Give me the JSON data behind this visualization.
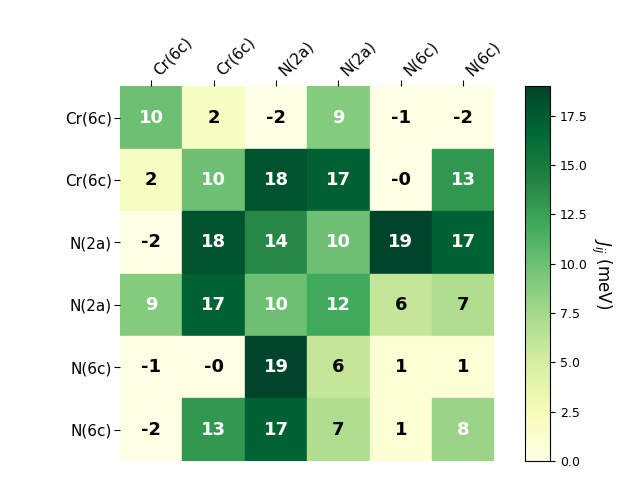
{
  "labels": [
    "Cr(6c)",
    "Cr(6c)",
    "N(2a)",
    "N(2a)",
    "N(6c)",
    "N(6c)"
  ],
  "matrix": [
    [
      10,
      2,
      -2,
      9,
      -1,
      -2
    ],
    [
      2,
      10,
      18,
      17,
      0,
      13
    ],
    [
      -2,
      18,
      14,
      10,
      19,
      17
    ],
    [
      9,
      17,
      10,
      12,
      6,
      7
    ],
    [
      -1,
      0,
      19,
      6,
      1,
      1
    ],
    [
      -2,
      13,
      17,
      7,
      1,
      8
    ]
  ],
  "display_values": [
    [
      "10",
      "2",
      "-2",
      "9",
      "-1",
      "-2"
    ],
    [
      "2",
      "10",
      "18",
      "17",
      "-0",
      "13"
    ],
    [
      "-2",
      "18",
      "14",
      "10",
      "19",
      "17"
    ],
    [
      "9",
      "17",
      "10",
      "12",
      "6",
      "7"
    ],
    [
      "-1",
      "-0",
      "19",
      "6",
      "1",
      "1"
    ],
    [
      "-2",
      "13",
      "17",
      "7",
      "1",
      "8"
    ]
  ],
  "vmin": 0.0,
  "vmax": 19.0,
  "cbar_label": "$J_{ij}$ (meV)",
  "cmap": "YlGn",
  "cbar_ticks": [
    0.0,
    2.5,
    5.0,
    7.5,
    10.0,
    12.5,
    15.0,
    17.5
  ],
  "font_size_annot": 13,
  "font_size_tick": 11,
  "font_size_cbar": 12,
  "white_threshold": 8,
  "figsize": [
    6.4,
    4.8
  ],
  "dpi": 100
}
